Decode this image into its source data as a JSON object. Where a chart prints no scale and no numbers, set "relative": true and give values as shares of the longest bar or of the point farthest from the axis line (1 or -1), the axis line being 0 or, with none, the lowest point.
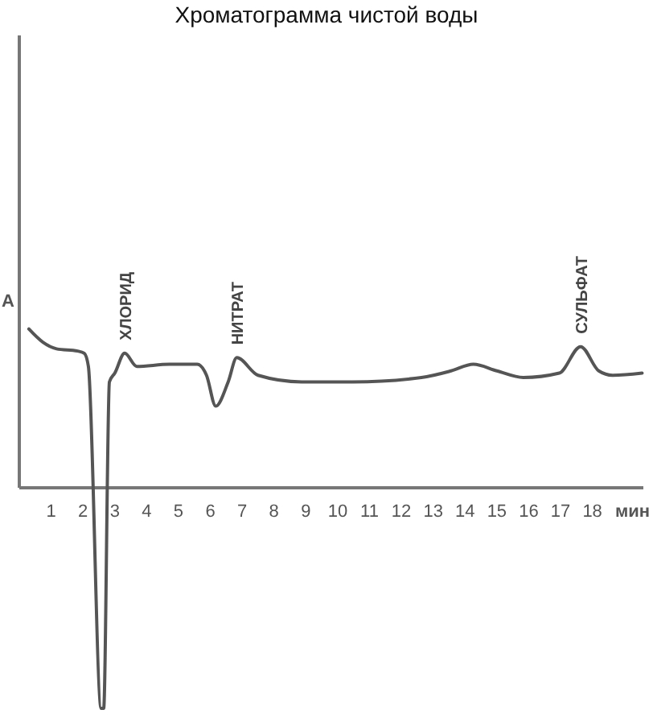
{
  "chart_data": {
    "type": "line",
    "relative": true,
    "title": "Хроматограмма чистой воды",
    "ylabel": "А",
    "xlabel": "мин",
    "xlim": [
      0,
      19.6
    ],
    "xticks": [
      1,
      2,
      3,
      4,
      5,
      6,
      7,
      8,
      9,
      10,
      11,
      12,
      13,
      14,
      15,
      16,
      17,
      18
    ],
    "tick_labels": "x",
    "grid": false,
    "marker": "none",
    "line_style": "solid",
    "series": [
      {
        "color": "#555555",
        "x": [
          0.3,
          0.74,
          1.17,
          1.83,
          2.04,
          2.17,
          2.57,
          2.65,
          2.83,
          3.0,
          3.31,
          3.69,
          4.71,
          5.59,
          5.88,
          6.17,
          6.56,
          6.83,
          7.5,
          8.87,
          10.48,
          12.63,
          13.56,
          14.26,
          15.0,
          15.83,
          16.96,
          17.63,
          18.2,
          18.63,
          19.56
        ],
        "values": [
          0.72,
          0.66,
          0.63,
          0.62,
          0.61,
          0.55,
          -1,
          -1,
          0.48,
          0.52,
          0.61,
          0.55,
          0.56,
          0.56,
          0.51,
          0.37,
          0.48,
          0.59,
          0.51,
          0.48,
          0.48,
          0.5,
          0.53,
          0.56,
          0.53,
          0.5,
          0.52,
          0.64,
          0.53,
          0.51,
          0.52
        ]
      }
    ],
    "annotations": [
      {
        "text": "ХЛОРИД",
        "x": 3.31,
        "y": 0.61
      },
      {
        "text": "НИТРАТ",
        "x": 6.83,
        "y": 0.59
      },
      {
        "text": "СУЛЬФАТ",
        "x": 17.63,
        "y": 0.64
      }
    ]
  }
}
